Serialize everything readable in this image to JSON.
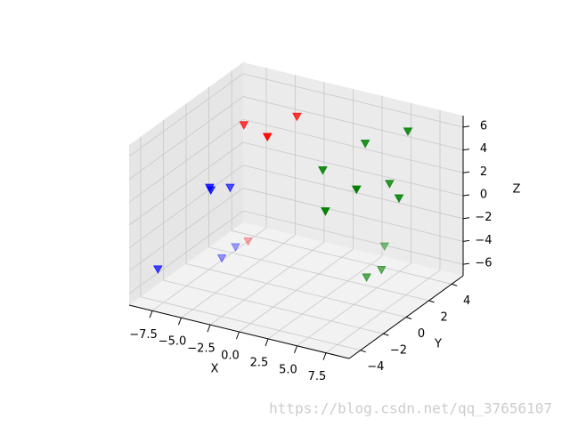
{
  "chart_data": {
    "type": "scatter3d",
    "xlabel": "X",
    "ylabel": "Y",
    "zlabel": "Z",
    "xlim": [
      -9.5,
      9.5
    ],
    "ylim": [
      -5,
      5
    ],
    "zlim": [
      -7,
      7
    ],
    "xticks": [
      {
        "value": -7.5,
        "label": "−7.5"
      },
      {
        "value": -5,
        "label": "−5.0"
      },
      {
        "value": -2.5,
        "label": "−2.5"
      },
      {
        "value": 0,
        "label": "0.0"
      },
      {
        "value": 2.5,
        "label": "2.5"
      },
      {
        "value": 5,
        "label": "5.0"
      },
      {
        "value": 7.5,
        "label": "7.5"
      }
    ],
    "yticks": [
      {
        "value": -4,
        "label": "−4"
      },
      {
        "value": -2,
        "label": "−2"
      },
      0,
      2,
      4
    ],
    "zticks": [
      {
        "value": -6,
        "label": "−6"
      },
      {
        "value": -4,
        "label": "−4"
      },
      {
        "value": -2,
        "label": "−2"
      },
      0,
      2,
      4,
      6
    ],
    "grid": true,
    "marker": "v",
    "series": [
      {
        "color": "#ff0000",
        "x": [
          -5.5,
          -1.9,
          -1.5,
          -7.1
        ],
        "y": [
          1,
          2,
          -1,
          3
        ],
        "z": [
          5.4,
          6.3,
          6.8,
          -6.6
        ]
      },
      {
        "color": "#0000ff",
        "x": [
          -5.5,
          -5.4,
          -5.7,
          -8,
          -7.4,
          -7.2
        ],
        "y": [
          -2,
          -2,
          0,
          -4,
          1,
          2
        ],
        "z": [
          2.1,
          1.9,
          0.6,
          -4.2,
          -6.7,
          -6.4
        ]
      },
      {
        "color": "#008000",
        "x": [
          2.3,
          6.2,
          4.5,
          4,
          6.7,
          6.1,
          7.9,
          3.7,
          5.4,
          5.1
        ],
        "y": [
          0,
          -1,
          -2,
          2,
          3,
          2,
          1,
          4,
          2,
          1
        ],
        "z": [
          4.1,
          4.1,
          2.5,
          5.4,
          6.4,
          2.4,
          2.3,
          -5.1,
          -5.3,
          -5.3
        ]
      }
    ],
    "watermark": "https://blog.csdn.net/qq_37656107"
  }
}
